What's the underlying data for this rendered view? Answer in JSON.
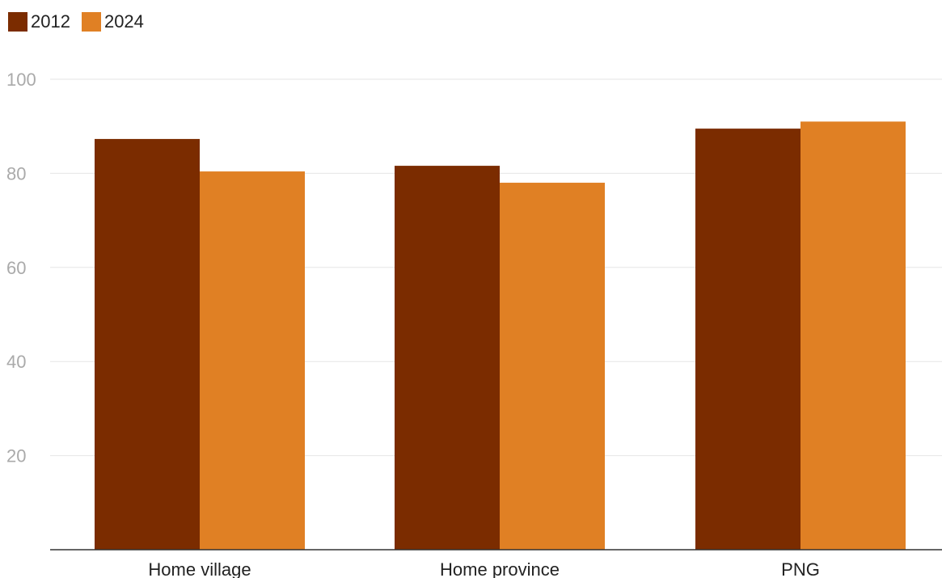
{
  "chart_data": {
    "type": "bar",
    "categories": [
      "Home village",
      "Home province",
      "PNG"
    ],
    "series": [
      {
        "name": "2012",
        "color": "#7b2c00",
        "values": [
          87.3,
          81.6,
          89.5
        ]
      },
      {
        "name": "2024",
        "color": "#e08024",
        "values": [
          80.4,
          78.0,
          91.0
        ]
      }
    ],
    "y_ticks": [
      "20",
      "40",
      "60",
      "80",
      "100"
    ],
    "ylim": [
      0,
      100
    ],
    "grid": true,
    "legend_position": "top-left",
    "title": "",
    "xlabel": "",
    "ylabel": ""
  }
}
